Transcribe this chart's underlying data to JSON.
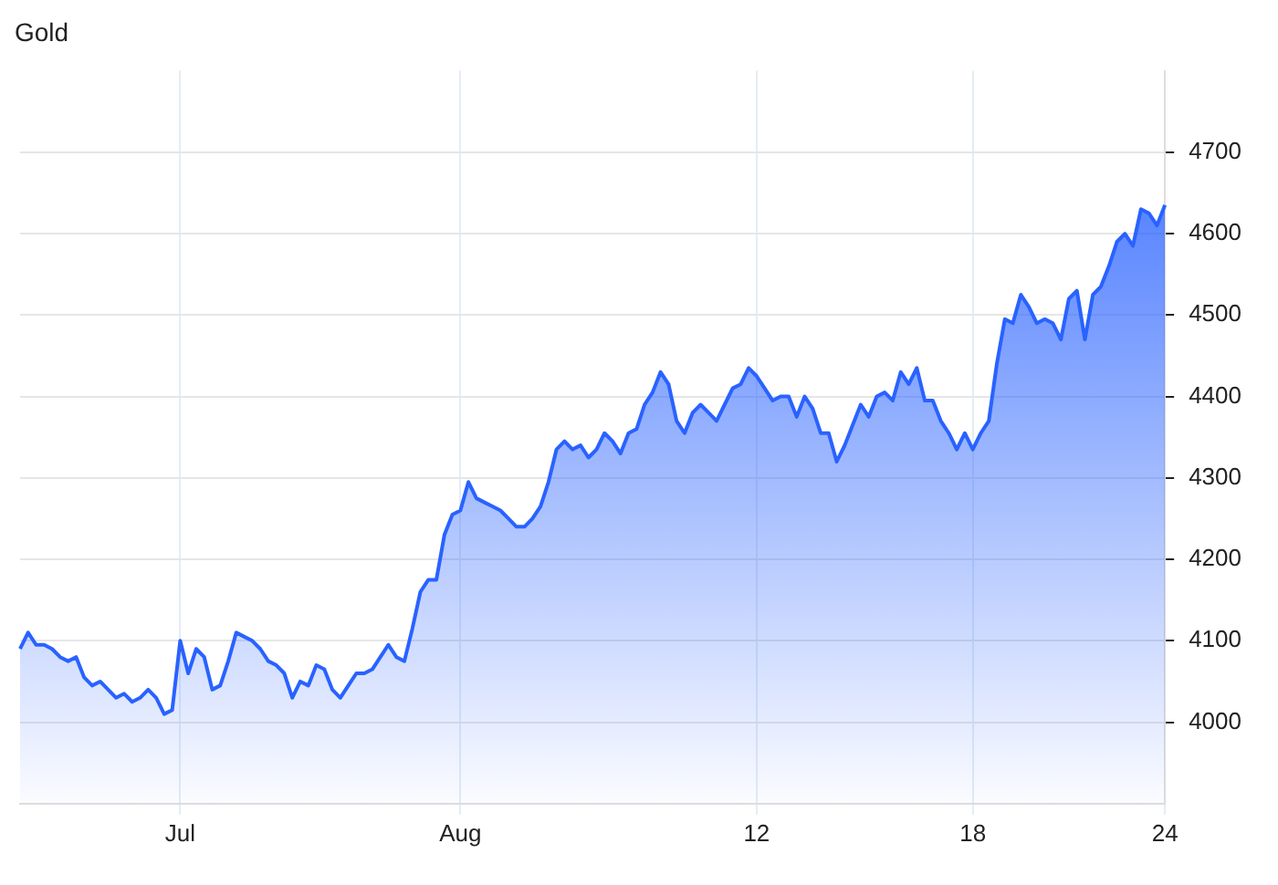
{
  "chart_data": {
    "type": "area",
    "title": "Gold",
    "grid": true,
    "legend": false,
    "marker": "none",
    "line_style": "solid",
    "categories": [
      null,
      null,
      null,
      null,
      null,
      null,
      null,
      null,
      null,
      null,
      null,
      null,
      null,
      null,
      null,
      null,
      null,
      null,
      null,
      null,
      "Jul",
      null,
      null,
      null,
      null,
      null,
      null,
      null,
      null,
      null,
      null,
      null,
      null,
      null,
      null,
      null,
      null,
      null,
      null,
      null,
      null,
      null,
      null,
      null,
      null,
      null,
      null,
      null,
      null,
      null,
      null,
      null,
      null,
      null,
      null,
      "Aug",
      null,
      null,
      null,
      null,
      null,
      null,
      null,
      null,
      null,
      null,
      null,
      null,
      null,
      null,
      null,
      null,
      null,
      null,
      null,
      null,
      null,
      null,
      null,
      null,
      null,
      null,
      null,
      null,
      null,
      null,
      null,
      null,
      null,
      null,
      null,
      null,
      "12",
      null,
      null,
      null,
      null,
      null,
      null,
      null,
      null,
      null,
      null,
      null,
      null,
      null,
      null,
      null,
      null,
      null,
      null,
      null,
      null,
      null,
      null,
      null,
      null,
      null,
      null,
      "18",
      null,
      null,
      null,
      null,
      null,
      null,
      null,
      null,
      null,
      null,
      null,
      null,
      null,
      null,
      null,
      null,
      null,
      null,
      null,
      null,
      null,
      null,
      null,
      "24"
    ],
    "ylim": [
      3900,
      4800
    ],
    "yticks": [
      4000,
      4100,
      4200,
      4300,
      4400,
      4500,
      4600,
      4700
    ],
    "series": [
      {
        "color": "#2962ff",
        "values": [
          4090,
          4110,
          4095,
          4095,
          4090,
          4080,
          4075,
          4080,
          4055,
          4045,
          4050,
          4040,
          4030,
          4035,
          4025,
          4030,
          4040,
          4030,
          4010,
          4015,
          4100,
          4060,
          4090,
          4080,
          4040,
          4045,
          4075,
          4110,
          4105,
          4100,
          4090,
          4075,
          4070,
          4060,
          4030,
          4050,
          4045,
          4070,
          4065,
          4040,
          4030,
          4045,
          4060,
          4060,
          4065,
          4080,
          4095,
          4080,
          4075,
          4115,
          4160,
          4175,
          4175,
          4230,
          4255,
          4260,
          4295,
          4275,
          4270,
          4265,
          4260,
          4250,
          4240,
          4240,
          4250,
          4265,
          4295,
          4335,
          4345,
          4335,
          4340,
          4325,
          4335,
          4355,
          4345,
          4330,
          4355,
          4360,
          4390,
          4405,
          4430,
          4415,
          4370,
          4355,
          4380,
          4390,
          4380,
          4370,
          4390,
          4410,
          4415,
          4435,
          4425,
          4410,
          4395,
          4400,
          4400,
          4375,
          4400,
          4385,
          4355,
          4355,
          4320,
          4340,
          4365,
          4390,
          4375,
          4400,
          4405,
          4395,
          4430,
          4415,
          4435,
          4395,
          4395,
          4370,
          4355,
          4335,
          4355,
          4335,
          4355,
          4370,
          4440,
          4495,
          4490,
          4525,
          4510,
          4490,
          4495,
          4490,
          4470,
          4520,
          4530,
          4470,
          4525,
          4535,
          4560,
          4590,
          4600,
          4585,
          4630,
          4625,
          4610,
          4635
        ]
      }
    ]
  }
}
